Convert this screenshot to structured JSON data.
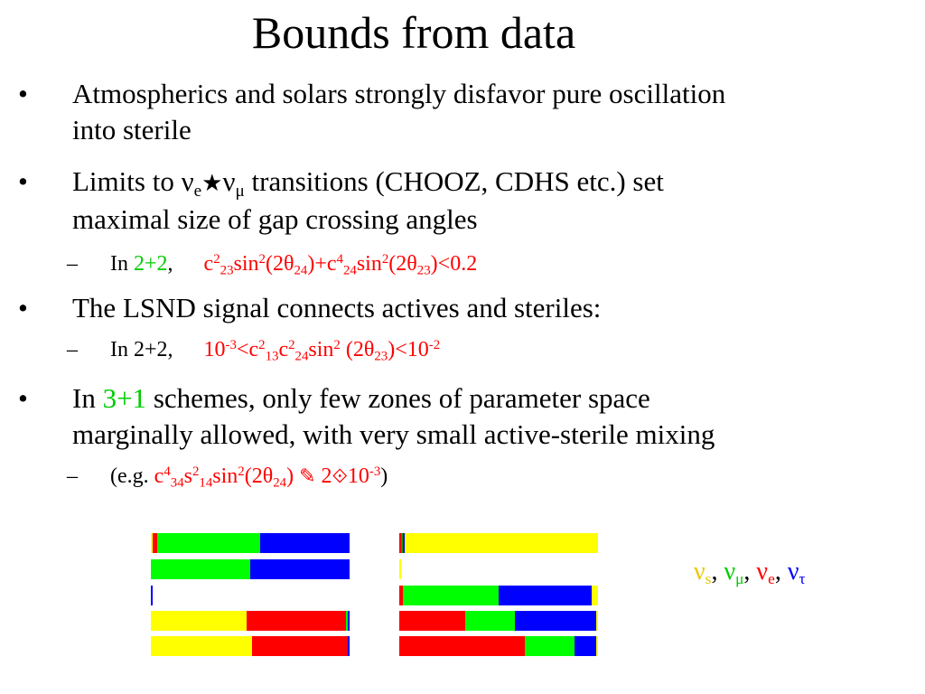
{
  "title": "Bounds from data",
  "colors": {
    "sterile": "#ffff00",
    "muon": "#00ff00",
    "electron": "#ff0000",
    "tau": "#0000ff"
  },
  "bullets": [
    {
      "marker": "•",
      "line1": "Atmospherics and solars strongly disfavor pure oscillation",
      "line2": "into sterile"
    },
    {
      "marker": "•",
      "lead": "Limits to ",
      "nu1": "ν",
      "nu1_sub": "e",
      "star": "★",
      "nu2": "ν",
      "nu2_sub": "μ",
      "tail": " transitions (CHOOZ, CDHS etc.) set",
      "line2": "maximal size of gap crossing angles"
    },
    {
      "marker": "•",
      "text": "The LSND signal connects actives and steriles:"
    },
    {
      "marker": "•",
      "lead": "In ",
      "scheme": "3+1",
      "tail": " schemes, only few zones of parameter space",
      "line2": "marginally allowed, with very small active-sterile mixing"
    }
  ],
  "subbullets": [
    {
      "marker": "–",
      "lead": "In ",
      "scheme": "2+2",
      "comma": ",",
      "f": {
        "c": "c",
        "two": "2",
        "s23": "23",
        "sin": "sin",
        "paren": "(2θ",
        "s24": "24",
        "plus": ")+c",
        "four": "4",
        "s24b": "24",
        "sin2": "sin",
        "paren2": "(2θ",
        "s23b": "23",
        "end": ")<0.2"
      }
    },
    {
      "marker": "–",
      "lead": "In 2+2,",
      "f": {
        "ten": "10",
        "m3": "-3",
        "lt": "<c",
        "two": "2",
        "s13": "13",
        "c": "c",
        "two2": "2",
        "s24": "24",
        "sin": "sin",
        "two3": "2",
        "paren": " (2θ",
        "s23": "23",
        "lt2": ")<10",
        "m2": "-2"
      }
    },
    {
      "marker": "–",
      "open": "(e.g. ",
      "f": {
        "c": "c",
        "four": "4",
        "s34": "34",
        "s": "s",
        "two": "2",
        "s14": "14",
        "sin": "sin",
        "two2": "2",
        "paren": "(2θ",
        "s24": "24",
        "close": ") ",
        "sym1": "✎",
        "two3": " 2",
        "sym2": "⟐",
        "ten": "10",
        "m3": "-3"
      },
      "end": ")"
    }
  ],
  "spectra": {
    "left": [
      [
        {
          "color": "#ffff00",
          "frac": 0.01
        },
        {
          "color": "#ff0000",
          "frac": 0.02
        },
        {
          "color": "#00ff00",
          "frac": 0.52
        },
        {
          "color": "#0000ff",
          "frac": 0.45
        }
      ],
      [
        {
          "color": "#00ff00",
          "frac": 0.5
        },
        {
          "color": "#0000ff",
          "frac": 0.5
        }
      ],
      [
        {
          "color": "#0000ff",
          "frac": 0.008
        }
      ],
      [
        {
          "color": "#ffff00",
          "frac": 0.48
        },
        {
          "color": "#ff0000",
          "frac": 0.5
        },
        {
          "color": "#00ff00",
          "frac": 0.01
        },
        {
          "color": "#0000ff",
          "frac": 0.01
        }
      ],
      [
        {
          "color": "#ffff00",
          "frac": 0.51
        },
        {
          "color": "#ff0000",
          "frac": 0.48
        },
        {
          "color": "#0000ff",
          "frac": 0.01
        }
      ]
    ],
    "right": [
      [
        {
          "color": "#ff0000",
          "frac": 0.005
        },
        {
          "color": "#00aa00",
          "frac": 0.005
        },
        {
          "color": "#0000ff",
          "frac": 0.005
        },
        {
          "color": "#ffff00",
          "frac": 0.985
        }
      ],
      [
        {
          "color": "#ffff00",
          "frac": 0.01
        }
      ],
      [
        {
          "color": "#ff0000",
          "frac": 0.02
        },
        {
          "color": "#00ff00",
          "frac": 0.48
        },
        {
          "color": "#0000ff",
          "frac": 0.47
        },
        {
          "color": "#ffff00",
          "frac": 0.03
        }
      ],
      [
        {
          "color": "#ff0000",
          "frac": 0.33
        },
        {
          "color": "#00ff00",
          "frac": 0.25
        },
        {
          "color": "#0000ff",
          "frac": 0.41
        },
        {
          "color": "#ffff00",
          "frac": 0.01
        }
      ],
      [
        {
          "color": "#ff0000",
          "frac": 0.63
        },
        {
          "color": "#00ff00",
          "frac": 0.25
        },
        {
          "color": "#0000ff",
          "frac": 0.11
        },
        {
          "color": "#ffff00",
          "frac": 0.01
        }
      ]
    ]
  },
  "legend": {
    "nu": "ν",
    "s": "s",
    "mu": "μ",
    "e": "e",
    "tau": "τ",
    "sep": ", "
  }
}
